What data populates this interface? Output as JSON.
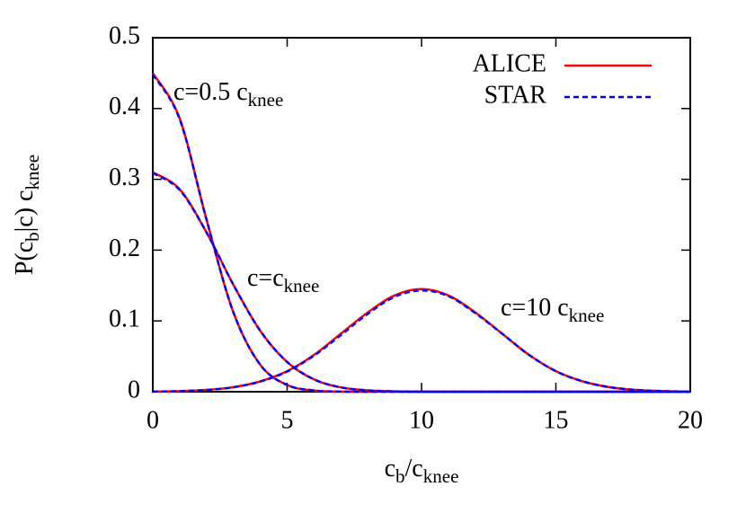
{
  "chart_data": {
    "type": "line",
    "xlabel": [
      "c",
      "b",
      "/c",
      "knee"
    ],
    "ylabel": [
      "P(c",
      "b",
      "|c) c",
      "knee"
    ],
    "annotations": [
      [
        "c=0.5 c",
        "knee"
      ],
      [
        "c=c",
        "knee"
      ],
      [
        "c=10 c",
        "knee"
      ]
    ],
    "x": [
      0,
      1,
      2,
      3,
      4,
      5,
      6,
      7,
      8,
      9,
      10,
      11,
      12,
      13,
      14,
      15,
      16,
      17,
      18,
      19,
      20
    ],
    "series": [
      {
        "name": "ALICE",
        "color": "#ff0000",
        "dashed": false,
        "values": [
          0.45,
          0.386,
          0.243,
          0.112,
          0.038,
          0.0095,
          0.0017,
          0.0002,
          0,
          0,
          0,
          0,
          0,
          0,
          0,
          0,
          0,
          0,
          0,
          0,
          0
        ]
      },
      {
        "name": "ALICE",
        "color": "#ff0000",
        "dashed": false,
        "values": [
          0.31,
          0.286,
          0.225,
          0.151,
          0.086,
          0.042,
          0.0174,
          0.0061,
          0.0019,
          0.0005,
          0.0001,
          0,
          0,
          0,
          0,
          0,
          0,
          0,
          0,
          0,
          0
        ]
      },
      {
        "name": "ALICE",
        "color": "#ff0000",
        "dashed": false,
        "values": [
          0.0002,
          0.0008,
          0.0025,
          0.0064,
          0.0146,
          0.029,
          0.052,
          0.082,
          0.112,
          0.136,
          0.145,
          0.136,
          0.112,
          0.082,
          0.052,
          0.029,
          0.0146,
          0.0064,
          0.0025,
          0.0008,
          0.0002
        ]
      },
      {
        "name": "STAR",
        "color": "#0000ff",
        "dashed": true,
        "values": [
          0.448,
          0.385,
          0.243,
          0.112,
          0.038,
          0.0095,
          0.0017,
          0.0002,
          0,
          0,
          0,
          0,
          0,
          0,
          0,
          0,
          0,
          0,
          0,
          0,
          0
        ]
      },
      {
        "name": "STAR",
        "color": "#0000ff",
        "dashed": true,
        "values": [
          0.309,
          0.285,
          0.225,
          0.151,
          0.086,
          0.042,
          0.0174,
          0.0061,
          0.0019,
          0.0005,
          0.0001,
          0,
          0,
          0,
          0,
          0,
          0,
          0,
          0,
          0,
          0
        ]
      },
      {
        "name": "STAR",
        "color": "#0000ff",
        "dashed": true,
        "values": [
          0.0002,
          0.0008,
          0.0025,
          0.0063,
          0.0144,
          0.0285,
          0.051,
          0.08,
          0.11,
          0.134,
          0.143,
          0.135,
          0.111,
          0.082,
          0.052,
          0.029,
          0.0146,
          0.0064,
          0.0025,
          0.0008,
          0.0002
        ]
      }
    ],
    "xlim": [
      0,
      20
    ],
    "xticks": [
      0,
      5,
      10,
      15,
      20
    ],
    "ylim": [
      0,
      0.5
    ],
    "yticks": [
      0,
      0.1,
      0.2,
      0.3,
      0.4,
      0.5
    ],
    "legend": "top-right"
  }
}
